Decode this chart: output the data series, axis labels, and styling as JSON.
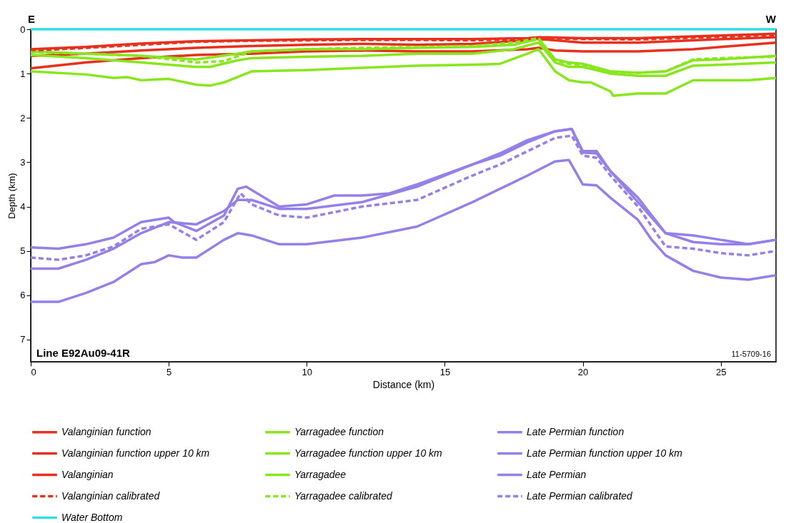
{
  "chart_data": {
    "type": "line",
    "xlabel": "Distance (km)",
    "ylabel": "Depth (km)",
    "xlim": [
      0,
      27
    ],
    "xticks": [
      0,
      5,
      10,
      15,
      20,
      25
    ],
    "ylim": [
      7.5,
      0
    ],
    "yticks": [
      0,
      1,
      2,
      3,
      4,
      5,
      6,
      7
    ],
    "grid": false,
    "legend": "bottom",
    "annotations": [
      "E",
      "W",
      "Line E92Au09-41R",
      "11-5709-16"
    ],
    "series": [
      {
        "name": "Valanginian function",
        "color": "#e8301c",
        "line_style": "solid",
        "x": [
          0,
          2,
          4,
          6,
          8,
          10,
          12,
          14,
          16,
          18,
          18.4,
          19,
          20,
          22,
          24,
          26,
          27
        ],
        "values": [
          0.88,
          0.75,
          0.65,
          0.58,
          0.55,
          0.5,
          0.48,
          0.5,
          0.5,
          0.45,
          0.42,
          0.48,
          0.5,
          0.5,
          0.45,
          0.35,
          0.3
        ]
      },
      {
        "name": "Yarragadee function",
        "color": "#88e61c",
        "line_style": "solid",
        "x": [
          0,
          2,
          3,
          3.5,
          4,
          5,
          6,
          6.5,
          7,
          8,
          10,
          12,
          14,
          16,
          17,
          18,
          18.4,
          19,
          19.5,
          20,
          20.3,
          21,
          21.1,
          22,
          23,
          23.5,
          24,
          25,
          26,
          27
        ],
        "values": [
          0.95,
          1.02,
          1.1,
          1.08,
          1.15,
          1.12,
          1.25,
          1.27,
          1.2,
          0.95,
          0.92,
          0.87,
          0.82,
          0.8,
          0.78,
          0.55,
          0.45,
          0.95,
          1.15,
          1.2,
          1.2,
          1.4,
          1.5,
          1.45,
          1.45,
          1.3,
          1.15,
          1.15,
          1.15,
          1.1
        ]
      },
      {
        "name": "Late Permian function",
        "color": "#9480e8",
        "line_style": "solid",
        "x": [
          0,
          1,
          2,
          3,
          4,
          4.5,
          5,
          5.5,
          6,
          7,
          7.5,
          8,
          9,
          10,
          12,
          14,
          16,
          17,
          18,
          19,
          19.5,
          20,
          20.5,
          21,
          22,
          22.5,
          23,
          24,
          25,
          26,
          27
        ],
        "values": [
          6.15,
          6.15,
          5.95,
          5.7,
          5.3,
          5.25,
          5.1,
          5.15,
          5.15,
          4.75,
          4.6,
          4.65,
          4.85,
          4.85,
          4.7,
          4.45,
          3.9,
          3.6,
          3.3,
          2.98,
          2.95,
          3.5,
          3.52,
          3.8,
          4.3,
          4.75,
          5.1,
          5.45,
          5.6,
          5.65,
          5.55
        ]
      },
      {
        "name": "Valanginian function upper 10 km",
        "color": "#e8301c",
        "line_style": "solid",
        "x": [
          0,
          2,
          4,
          6,
          8,
          10,
          12,
          14,
          16,
          18,
          18.4,
          20,
          22,
          24,
          26,
          27
        ],
        "values": [
          0.6,
          0.55,
          0.48,
          0.42,
          0.38,
          0.35,
          0.33,
          0.35,
          0.33,
          0.25,
          0.22,
          0.3,
          0.3,
          0.25,
          0.2,
          0.18
        ]
      },
      {
        "name": "Yarragadee function upper 10 km",
        "color": "#88e61c",
        "line_style": "solid",
        "x": [
          0,
          2,
          4,
          6,
          6.5,
          7.5,
          8,
          10,
          12,
          14,
          16,
          17.5,
          18.4,
          19,
          19.5,
          20,
          21,
          22,
          23,
          24,
          25,
          27
        ],
        "values": [
          0.58,
          0.65,
          0.75,
          0.85,
          0.85,
          0.7,
          0.65,
          0.62,
          0.6,
          0.55,
          0.55,
          0.45,
          0.3,
          0.75,
          0.85,
          0.85,
          1.0,
          1.05,
          1.05,
          0.82,
          0.8,
          0.75
        ]
      },
      {
        "name": "Late Permian function upper 10 km",
        "color": "#9480e8",
        "line_style": "solid",
        "x": [
          0,
          1,
          2,
          3,
          4,
          5,
          6,
          7,
          7.5,
          8,
          9,
          10,
          12,
          14,
          16,
          17,
          18,
          19,
          19.6,
          20,
          20.5,
          21,
          22,
          23,
          24,
          25,
          26,
          27
        ],
        "values": [
          5.4,
          5.4,
          5.2,
          4.95,
          4.6,
          4.35,
          4.4,
          4.1,
          3.85,
          3.85,
          4.05,
          4.05,
          3.9,
          3.55,
          3.05,
          2.85,
          2.55,
          2.3,
          2.25,
          2.75,
          2.75,
          3.2,
          3.9,
          4.6,
          4.8,
          4.85,
          4.85,
          4.75
        ]
      },
      {
        "name": "Valanginian",
        "color": "#e8301c",
        "line_style": "solid",
        "x": [
          0,
          2,
          4,
          6,
          8,
          10,
          12,
          14,
          16,
          18,
          18.4,
          20,
          22,
          24,
          26,
          27
        ],
        "values": [
          0.45,
          0.4,
          0.32,
          0.27,
          0.25,
          0.23,
          0.22,
          0.22,
          0.22,
          0.2,
          0.18,
          0.2,
          0.2,
          0.16,
          0.12,
          0.1
        ]
      },
      {
        "name": "Yarragadee",
        "color": "#88e61c",
        "line_style": "solid",
        "x": [
          0,
          2,
          4,
          6,
          7.5,
          8,
          10,
          12,
          14,
          16,
          17.5,
          18.4,
          19,
          19.5,
          20,
          21,
          22,
          23,
          24,
          25,
          27
        ],
        "values": [
          0.5,
          0.55,
          0.6,
          0.68,
          0.55,
          0.5,
          0.45,
          0.45,
          0.42,
          0.4,
          0.35,
          0.22,
          0.68,
          0.75,
          0.78,
          0.95,
          0.98,
          0.95,
          0.7,
          0.68,
          0.6
        ]
      },
      {
        "name": "Late Permian",
        "color": "#9480e8",
        "line_style": "solid",
        "x": [
          0,
          1,
          2,
          3,
          4,
          5,
          5.2,
          6,
          7,
          7.5,
          7.8,
          9,
          10,
          11,
          12,
          13,
          14,
          16,
          17,
          18,
          19,
          19.6,
          20,
          20.5,
          21,
          22,
          23,
          24,
          25,
          26,
          27
        ],
        "values": [
          4.92,
          4.95,
          4.85,
          4.7,
          4.35,
          4.25,
          4.35,
          4.55,
          4.2,
          3.6,
          3.55,
          4.0,
          3.95,
          3.75,
          3.75,
          3.7,
          3.5,
          3.05,
          2.8,
          2.5,
          2.3,
          2.25,
          2.78,
          2.8,
          3.2,
          3.8,
          4.6,
          4.65,
          4.75,
          4.85,
          4.75
        ]
      },
      {
        "name": "Valanginian calibrated",
        "color": "#e8301c",
        "line_style": "dashed",
        "x": [
          0,
          2,
          4,
          6,
          8,
          10,
          12,
          14,
          16,
          18,
          18.4,
          20,
          22,
          24,
          26,
          27
        ],
        "values": [
          0.48,
          0.42,
          0.35,
          0.28,
          0.26,
          0.25,
          0.24,
          0.24,
          0.25,
          0.22,
          0.2,
          0.22,
          0.23,
          0.19,
          0.15,
          0.13
        ]
      },
      {
        "name": "Yarragadee calibrated",
        "color": "#88e61c",
        "line_style": "dashed",
        "x": [
          0,
          2,
          4,
          6,
          7,
          8,
          10,
          12,
          14,
          16,
          17.5,
          18.4,
          19,
          19.5,
          20,
          21,
          22,
          23,
          24,
          25,
          27
        ],
        "values": [
          0.52,
          0.55,
          0.6,
          0.75,
          0.72,
          0.5,
          0.45,
          0.42,
          0.4,
          0.38,
          0.3,
          0.2,
          0.7,
          0.78,
          0.8,
          0.98,
          0.98,
          0.95,
          0.68,
          0.65,
          0.62
        ]
      },
      {
        "name": "Late Permian calibrated",
        "color": "#9480e8",
        "line_style": "dashed",
        "x": [
          0,
          1,
          2,
          3,
          4,
          5,
          6,
          7,
          7.6,
          8,
          9,
          10,
          12,
          14,
          16,
          17,
          18,
          19,
          19.6,
          20,
          20.5,
          21,
          22,
          23,
          24,
          25,
          26,
          27
        ],
        "values": [
          5.15,
          5.2,
          5.1,
          4.9,
          4.5,
          4.4,
          4.75,
          4.35,
          3.7,
          3.95,
          4.2,
          4.25,
          4.0,
          3.85,
          3.3,
          3.05,
          2.75,
          2.45,
          2.4,
          2.85,
          2.9,
          3.3,
          4.0,
          4.9,
          4.95,
          5.05,
          5.1,
          5.0
        ]
      },
      {
        "name": "Water Bottom",
        "color": "#33dde6",
        "line_style": "solid",
        "x": [
          0,
          27
        ],
        "values": [
          0,
          0
        ]
      }
    ]
  }
}
